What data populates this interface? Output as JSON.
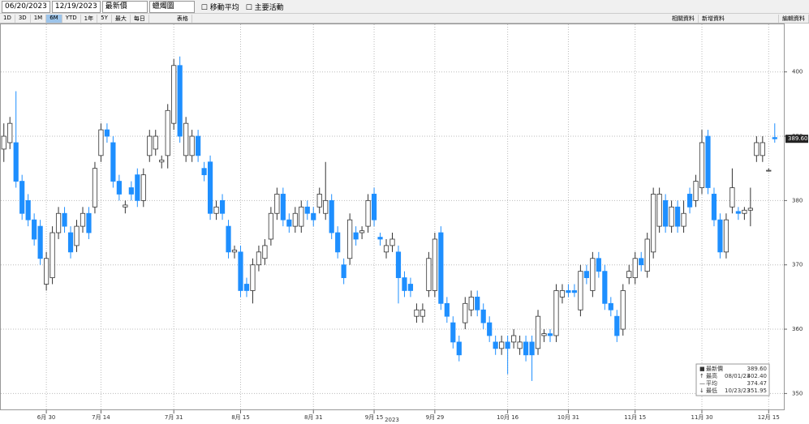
{
  "toolbar": {
    "start_date": "06/20/2023",
    "end_date": "12/19/2023",
    "field": "最新價",
    "chart_style": "蠟燭圖",
    "moving_average": "移動平均",
    "events": "主要活動",
    "ranges": [
      "1D",
      "3D",
      "1M",
      "6M",
      "YTD",
      "1年",
      "5Y",
      "最大"
    ],
    "period": "每日",
    "table": "表格",
    "related": "相關資料",
    "add_data": "新增資料",
    "edit_data": "編輯資料"
  },
  "chart_data": {
    "type": "candlestick",
    "x_label": "2023",
    "up_color": "#ffffff",
    "down_color": "#1e8fff",
    "categories": [
      null,
      null,
      null,
      null,
      null,
      null,
      null,
      null,
      null,
      null,
      null,
      null,
      null,
      null,
      null,
      null,
      null,
      null,
      null,
      null,
      null,
      null,
      null,
      null,
      null,
      null,
      null,
      null,
      null,
      null,
      null,
      null,
      null,
      null,
      null,
      null,
      null,
      null,
      null,
      null,
      null,
      null,
      null,
      null,
      null,
      null,
      null,
      null,
      null,
      null,
      null,
      null,
      null,
      null,
      null,
      null,
      null,
      null,
      null,
      null,
      null,
      null,
      null,
      null,
      null,
      null,
      null,
      null,
      null,
      null,
      null,
      null,
      null,
      null,
      null,
      null,
      null,
      null,
      null,
      null,
      null,
      null,
      null,
      null,
      null,
      null,
      null,
      null,
      null,
      null,
      null,
      null,
      null,
      null,
      null,
      null,
      null,
      null,
      null,
      null,
      null,
      null,
      null,
      null,
      null,
      null,
      null,
      null,
      null,
      null,
      null,
      null,
      null,
      null,
      null,
      null,
      null,
      null,
      null,
      null,
      null,
      null,
      null,
      null,
      null,
      null,
      null,
      null
    ],
    "open": [
      388,
      389,
      389,
      383,
      380,
      377,
      376,
      367,
      368,
      375,
      378,
      375,
      373,
      376,
      378,
      379,
      387,
      391,
      389,
      383,
      379,
      382,
      384,
      380,
      387,
      388,
      386,
      387,
      392,
      401,
      387,
      387,
      390,
      385,
      386,
      378,
      380,
      376,
      372,
      372,
      367,
      366,
      370,
      371,
      374,
      378,
      381,
      377,
      376,
      376,
      379,
      378,
      379,
      378,
      380,
      375,
      370,
      371,
      375,
      375,
      376,
      381,
      374.3,
      372,
      373,
      372,
      368,
      367,
      362,
      362,
      366,
      366,
      375,
      364,
      361,
      358,
      361,
      363,
      365,
      363,
      361,
      358,
      357,
      358,
      358,
      357,
      358,
      358,
      357,
      359,
      359.3,
      359,
      365,
      366,
      366,
      363,
      369,
      366,
      371,
      369,
      364,
      362,
      360,
      368,
      368,
      371,
      369,
      372,
      376,
      380,
      376,
      379,
      376,
      381,
      380,
      382,
      390,
      381,
      377,
      372,
      379,
      378.3,
      378,
      378.5,
      387,
      387,
      384.7,
      389.8
    ],
    "high": [
      392,
      393,
      397,
      384,
      381,
      378,
      377,
      372,
      376,
      379,
      379,
      376,
      377,
      379,
      379,
      386,
      392,
      392,
      390,
      384,
      380,
      383,
      385,
      385,
      391,
      391,
      387,
      395,
      402,
      402.4,
      393,
      391,
      391,
      386,
      387,
      380,
      381,
      377,
      373,
      373,
      368,
      371,
      373,
      374,
      379,
      382,
      382,
      378,
      379,
      380,
      380,
      379,
      382,
      386,
      381,
      376,
      371,
      378,
      376,
      376,
      381,
      382,
      375,
      374,
      375,
      373,
      369,
      368,
      364,
      364,
      372,
      375,
      376,
      365,
      362,
      359,
      365,
      366,
      366,
      364,
      362,
      359,
      359,
      359,
      360,
      359,
      359,
      359,
      363,
      360,
      360,
      367,
      367,
      367,
      367,
      370,
      370,
      372,
      372,
      370,
      365,
      363,
      367,
      370,
      372,
      372,
      375,
      382,
      382,
      381,
      380,
      380,
      380,
      382,
      384,
      391,
      391,
      382,
      378,
      378,
      385,
      379,
      379,
      382,
      390,
      390,
      385,
      392
    ],
    "low": [
      386,
      388,
      382,
      377,
      376,
      373,
      370,
      366,
      367,
      374,
      375,
      371,
      372,
      375,
      374,
      378,
      386,
      389,
      382,
      380,
      378,
      380,
      379,
      379,
      386,
      387,
      385,
      385,
      391,
      389,
      386,
      386,
      386,
      383,
      377,
      377,
      377,
      371,
      371,
      365,
      365,
      364,
      369,
      370,
      373,
      377,
      376,
      375,
      375,
      375,
      377,
      376,
      378,
      377,
      374,
      371,
      367,
      370,
      373,
      374,
      375,
      376,
      373,
      371,
      372,
      364,
      365,
      365,
      361,
      361,
      365,
      365,
      363,
      361,
      357,
      355,
      360,
      362,
      362,
      360,
      358,
      356,
      356,
      353,
      357,
      356,
      355,
      351.95,
      356,
      358,
      358,
      358,
      364,
      365,
      365,
      362,
      367,
      365,
      368,
      363,
      362,
      358,
      359,
      367,
      367,
      369,
      368,
      371,
      375,
      375,
      375,
      375,
      375,
      378,
      379,
      381,
      381,
      376,
      371,
      371,
      378,
      377,
      377,
      376,
      386,
      386,
      384.5,
      389
    ],
    "close": [
      390,
      392,
      383,
      378,
      377,
      374,
      371,
      371,
      375,
      378,
      376,
      372,
      376,
      378,
      375,
      385,
      391,
      390,
      383,
      381,
      379.3,
      381,
      380,
      384,
      390,
      390,
      386.3,
      394,
      401,
      390,
      392,
      390,
      387,
      384,
      378,
      379,
      378,
      372,
      372.3,
      366,
      366,
      370,
      372,
      373,
      378,
      381,
      377,
      376,
      378,
      379,
      378,
      377,
      381,
      380,
      375,
      372,
      368,
      377,
      374,
      375.3,
      380,
      377,
      374,
      373,
      374,
      368,
      366,
      366,
      363,
      363,
      371,
      374,
      364,
      362,
      358,
      356,
      364,
      365,
      363,
      361,
      359,
      357,
      358,
      357,
      359,
      358,
      356,
      356,
      362,
      359.3,
      359,
      366,
      366,
      365.7,
      365.7,
      369,
      368,
      371,
      369,
      364,
      363,
      359,
      366,
      369,
      371,
      370,
      374,
      381,
      381,
      376,
      379,
      376,
      378,
      379,
      383,
      389,
      382,
      377,
      372,
      377,
      382,
      378,
      378.5,
      378.8,
      389,
      389,
      384.7,
      389.6
    ],
    "ylim": [
      347.4,
      407.4
    ],
    "yticks": [
      350,
      360,
      370,
      380,
      390,
      400
    ],
    "xlim": [
      -0.5,
      128.5
    ],
    "xticks": [
      {
        "value": 7,
        "label": "6月 30"
      },
      {
        "value": 16,
        "label": "7月 14"
      },
      {
        "value": 28,
        "label": "7月 31"
      },
      {
        "value": 39,
        "label": "8月 15"
      },
      {
        "value": 51,
        "label": "8月 31"
      },
      {
        "value": 61,
        "label": "9月 15"
      },
      {
        "value": 71,
        "label": "9月 29"
      },
      {
        "value": 83,
        "label": "10月 16"
      },
      {
        "value": 93,
        "label": "10月 31"
      },
      {
        "value": 104,
        "label": "11月 15"
      },
      {
        "value": 115,
        "label": "11月 30"
      },
      {
        "value": 126,
        "label": "12月 15"
      }
    ],
    "grid": true,
    "last_price": {
      "value": 389.6,
      "label": "389.60"
    },
    "stats": [
      {
        "label": "最新價",
        "date": "",
        "value": "389.60"
      },
      {
        "label": "最高",
        "date": "08/01/23",
        "value": "402.40"
      },
      {
        "label": "平均",
        "date": "",
        "value": "374.47"
      },
      {
        "label": "最低",
        "date": "10/23/23",
        "value": "351.95"
      }
    ]
  }
}
